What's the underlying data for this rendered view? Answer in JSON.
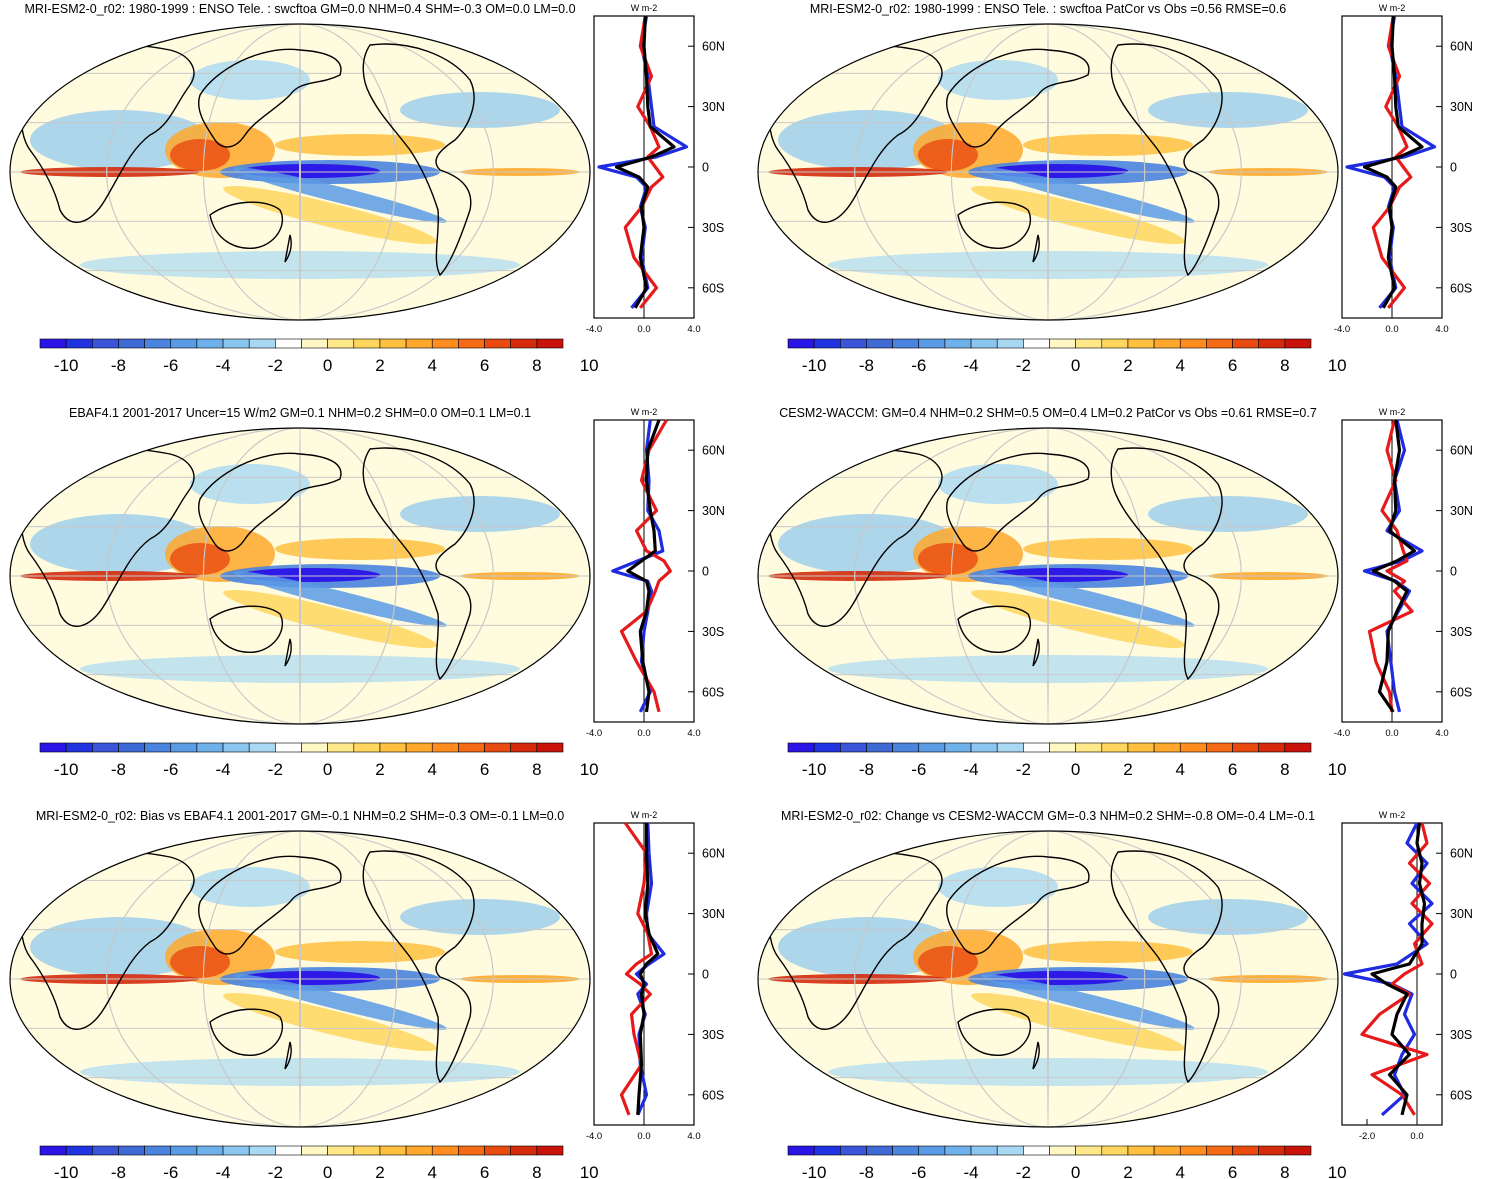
{
  "units_label": "W m-2",
  "colorbar": {
    "labels": [
      "-10",
      "-8",
      "-6",
      "-4",
      "-2",
      "0",
      "2",
      "4",
      "6",
      "8",
      "10"
    ],
    "colors": [
      "#2b14e6",
      "#1f33e0",
      "#3a55d9",
      "#3f6ad6",
      "#4a84de",
      "#5a9be6",
      "#6fb1ea",
      "#8ac6ee",
      "#a9d8f2",
      "#ffffff",
      "#fff7c4",
      "#ffe88a",
      "#ffd65e",
      "#ffc040",
      "#ffa82c",
      "#ff8c1c",
      "#f56a14",
      "#e84a10",
      "#d52a0c",
      "#c8120a"
    ]
  },
  "zonal_colors": {
    "model": "#1e2be0",
    "obs": "#e61a1a",
    "diff": "#000000"
  },
  "chart_data": [
    {
      "type": "map_with_zonal_mean",
      "title": "MRI-ESM2-0_r02: 1980-1999 : ENSO Tele. : swcftoa GM=0.0 NHM=0.4 SHM=-0.3 OM=0.0 LM=0.0",
      "lat_ticks": [
        "60N",
        "30N",
        "0",
        "30S",
        "60S"
      ],
      "x_ticks": [
        "-4.0",
        "0.0",
        "4.0"
      ],
      "xlim": [
        -4,
        4
      ],
      "ylim": [
        -75,
        75
      ],
      "series": [
        {
          "name": "model",
          "lat": [
            75,
            60,
            45,
            30,
            20,
            10,
            5,
            0,
            -5,
            -10,
            -20,
            -30,
            -45,
            -60,
            -70
          ],
          "values": [
            0.2,
            -0.2,
            0.3,
            0.6,
            0.8,
            3.4,
            1.0,
            -3.6,
            -0.6,
            0.2,
            -0.3,
            0.1,
            -0.2,
            0.3,
            -1.0
          ]
        },
        {
          "name": "obs",
          "lat": [
            75,
            60,
            45,
            30,
            20,
            10,
            5,
            0,
            -5,
            -10,
            -20,
            -30,
            -45,
            -60,
            -70
          ],
          "values": [
            0.1,
            -0.3,
            0.6,
            -0.5,
            0.5,
            1.2,
            0.3,
            0.9,
            1.5,
            0.6,
            -0.2,
            -1.5,
            -0.8,
            1.0,
            -0.3
          ]
        },
        {
          "name": "diff",
          "lat": [
            75,
            60,
            45,
            30,
            20,
            10,
            5,
            0,
            -5,
            -10,
            -20,
            -30,
            -45,
            -60,
            -70
          ],
          "values": [
            0.1,
            0.0,
            0.2,
            0.3,
            0.5,
            2.4,
            0.6,
            -2.2,
            -0.4,
            0.3,
            -0.2,
            0.0,
            -0.3,
            0.2,
            -0.7
          ]
        }
      ]
    },
    {
      "type": "map_with_zonal_mean",
      "title": "MRI-ESM2-0_r02: 1980-1999 : ENSO Tele. : swcftoa PatCor vs Obs =0.56 RMSE=0.6",
      "lat_ticks": [
        "60N",
        "30N",
        "0",
        "30S",
        "60S"
      ],
      "x_ticks": [
        "-4.0",
        "0.0",
        "4.0"
      ],
      "xlim": [
        -4,
        4
      ],
      "ylim": [
        -75,
        75
      ],
      "series": [
        {
          "name": "model",
          "lat": [
            75,
            60,
            45,
            30,
            20,
            10,
            5,
            0,
            -5,
            -10,
            -20,
            -30,
            -45,
            -60,
            -70
          ],
          "values": [
            0.2,
            -0.2,
            0.3,
            0.6,
            0.8,
            3.4,
            1.0,
            -3.6,
            -0.6,
            0.2,
            -0.3,
            0.1,
            -0.2,
            0.3,
            -1.0
          ]
        },
        {
          "name": "obs",
          "lat": [
            75,
            60,
            45,
            30,
            20,
            10,
            5,
            0,
            -5,
            -10,
            -20,
            -30,
            -45,
            -60,
            -70
          ],
          "values": [
            0.1,
            -0.3,
            0.6,
            -0.5,
            0.5,
            1.2,
            0.3,
            0.9,
            1.5,
            0.6,
            -0.2,
            -1.5,
            -0.8,
            1.0,
            -0.3
          ]
        },
        {
          "name": "diff",
          "lat": [
            75,
            60,
            45,
            30,
            20,
            10,
            5,
            0,
            -5,
            -10,
            -20,
            -30,
            -45,
            -60,
            -70
          ],
          "values": [
            0.1,
            0.0,
            0.2,
            0.3,
            0.5,
            2.4,
            0.6,
            -2.2,
            -0.4,
            0.3,
            -0.2,
            0.0,
            -0.3,
            0.2,
            -0.7
          ]
        }
      ]
    },
    {
      "type": "map_with_zonal_mean",
      "title": "EBAF4.1 2001-2017 Uncer=15 W/m2 GM=0.1 NHM=0.2 SHM=0.0 OM=0.1 LM=0.1",
      "lat_ticks": [
        "60N",
        "30N",
        "0",
        "30S",
        "60S"
      ],
      "x_ticks": [
        "-4.0",
        "0.0",
        "4.0"
      ],
      "xlim": [
        -4,
        4
      ],
      "ylim": [
        -75,
        75
      ],
      "series": [
        {
          "name": "model",
          "lat": [
            75,
            60,
            45,
            30,
            20,
            10,
            5,
            0,
            -5,
            -10,
            -20,
            -30,
            -45,
            -60,
            -70
          ],
          "values": [
            0.5,
            0.2,
            0.4,
            0.3,
            1.2,
            1.5,
            -0.5,
            -2.5,
            0.3,
            0.6,
            0.3,
            0.0,
            -0.2,
            0.5,
            -0.3
          ]
        },
        {
          "name": "obs",
          "lat": [
            75,
            60,
            45,
            30,
            20,
            10,
            5,
            0,
            -5,
            -10,
            -20,
            -30,
            -45,
            -60,
            -70
          ],
          "values": [
            1.8,
            0.4,
            -0.2,
            1.0,
            -0.6,
            0.2,
            1.6,
            2.1,
            1.2,
            0.9,
            0.2,
            -1.8,
            -0.6,
            0.8,
            1.2
          ]
        },
        {
          "name": "diff",
          "lat": [
            75,
            60,
            45,
            30,
            20,
            10,
            5,
            0,
            -5,
            -10,
            -20,
            -30,
            -45,
            -60,
            -70
          ],
          "values": [
            1.2,
            0.3,
            0.2,
            0.5,
            0.8,
            0.9,
            -0.2,
            -1.3,
            0.2,
            0.4,
            0.2,
            -0.3,
            -0.1,
            0.4,
            0.2
          ]
        }
      ]
    },
    {
      "type": "map_with_zonal_mean",
      "title": "CESM2-WACCM: GM=0.4 NHM=0.2 SHM=0.5 OM=0.4 LM=0.2 PatCor vs Obs =0.61 RMSE=0.7",
      "lat_ticks": [
        "60N",
        "30N",
        "0",
        "30S",
        "60S"
      ],
      "x_ticks": [
        "-4.0",
        "0.0",
        "4.0"
      ],
      "xlim": [
        -4,
        4
      ],
      "ylim": [
        -75,
        75
      ],
      "series": [
        {
          "name": "model",
          "lat": [
            75,
            60,
            45,
            30,
            20,
            10,
            5,
            0,
            -5,
            -10,
            -20,
            -30,
            -45,
            -60,
            -70
          ],
          "values": [
            0.4,
            1.0,
            0.2,
            0.6,
            -0.4,
            2.4,
            0.8,
            -2.2,
            0.3,
            1.4,
            0.5,
            -0.4,
            -0.1,
            0.2,
            0.6
          ]
        },
        {
          "name": "obs",
          "lat": [
            75,
            60,
            45,
            30,
            20,
            10,
            5,
            0,
            -5,
            -10,
            -20,
            -30,
            -45,
            -60,
            -70
          ],
          "values": [
            0.2,
            -0.4,
            0.3,
            -0.8,
            0.4,
            0.9,
            1.2,
            -0.4,
            1.0,
            0.2,
            1.6,
            -1.8,
            -1.3,
            -0.2,
            0.0
          ]
        },
        {
          "name": "diff",
          "lat": [
            75,
            60,
            45,
            30,
            20,
            10,
            5,
            0,
            -5,
            -10,
            -20,
            -30,
            -45,
            -60,
            -70
          ],
          "values": [
            0.3,
            0.6,
            0.2,
            0.3,
            -0.2,
            1.8,
            0.4,
            -1.5,
            0.2,
            1.2,
            0.4,
            -0.3,
            -0.4,
            -1.0,
            0.1
          ]
        }
      ]
    },
    {
      "type": "map_with_zonal_mean",
      "title": "MRI-ESM2-0_r02: Bias vs EBAF4.1 2001-2017 GM=-0.1 NHM=0.2 SHM=-0.3 OM=-0.1 LM=0.0",
      "lat_ticks": [
        "60N",
        "30N",
        "0",
        "30S",
        "60S"
      ],
      "x_ticks": [
        "-4.0",
        "0.0",
        "4.0"
      ],
      "xlim": [
        -4,
        4
      ],
      "ylim": [
        -75,
        75
      ],
      "series": [
        {
          "name": "model",
          "lat": [
            75,
            60,
            45,
            30,
            20,
            10,
            5,
            0,
            -5,
            -10,
            -20,
            -30,
            -45,
            -60,
            -70
          ],
          "values": [
            0.3,
            0.4,
            0.6,
            0.2,
            0.3,
            1.6,
            0.4,
            -0.6,
            0.2,
            -0.5,
            0.1,
            -0.4,
            -0.3,
            0.2,
            -0.5
          ]
        },
        {
          "name": "obs",
          "lat": [
            75,
            60,
            45,
            30,
            20,
            10,
            5,
            0,
            -5,
            -10,
            -20,
            -30,
            -45,
            -60,
            -70
          ],
          "values": [
            -1.5,
            0.2,
            0.0,
            -0.5,
            0.3,
            0.6,
            -0.6,
            -1.4,
            -0.3,
            0.5,
            -1.0,
            -0.8,
            -0.2,
            -1.8,
            -1.2
          ]
        },
        {
          "name": "diff",
          "lat": [
            75,
            60,
            45,
            30,
            20,
            10,
            5,
            0,
            -5,
            -10,
            -20,
            -30,
            -45,
            -60,
            -70
          ],
          "values": [
            0.2,
            0.2,
            0.3,
            0.1,
            0.4,
            1.1,
            0.2,
            -0.3,
            0.0,
            -0.2,
            0.0,
            -0.3,
            -0.2,
            -0.4,
            -0.5
          ]
        }
      ]
    },
    {
      "type": "map_with_zonal_mean",
      "title": "MRI-ESM2-0_r02: Change vs CESM2-WACCM GM=-0.3 NHM=0.2 SHM=-0.8 OM=-0.4 LM=-0.1",
      "lat_ticks": [
        "60N",
        "30N",
        "0",
        "30S",
        "60S"
      ],
      "x_ticks": [
        "-2.0",
        "0.0"
      ],
      "xlim": [
        -3,
        1
      ],
      "ylim": [
        -75,
        75
      ],
      "series": [
        {
          "name": "model",
          "lat": [
            75,
            65,
            55,
            45,
            35,
            25,
            15,
            5,
            0,
            -5,
            -10,
            -20,
            -30,
            -40,
            -50,
            -60,
            -70
          ],
          "values": [
            0.0,
            -0.4,
            0.4,
            -0.2,
            0.6,
            -0.3,
            0.4,
            -0.8,
            -2.9,
            -1.0,
            -0.2,
            -0.5,
            -0.1,
            -0.6,
            -0.9,
            -0.5,
            -1.4
          ]
        },
        {
          "name": "obs",
          "lat": [
            75,
            65,
            55,
            45,
            35,
            25,
            15,
            5,
            0,
            -5,
            -10,
            -20,
            -30,
            -40,
            -50,
            -60,
            -70
          ],
          "values": [
            0.2,
            0.4,
            -0.3,
            0.5,
            -0.2,
            0.6,
            -0.1,
            0.2,
            -0.5,
            -1.0,
            -0.3,
            -1.5,
            -2.2,
            0.4,
            -1.8,
            -0.6,
            -0.1
          ]
        },
        {
          "name": "diff",
          "lat": [
            75,
            65,
            55,
            45,
            35,
            25,
            15,
            5,
            0,
            -5,
            -10,
            -20,
            -30,
            -40,
            -50,
            -60,
            -70
          ],
          "values": [
            0.1,
            0.0,
            0.2,
            0.1,
            0.3,
            0.2,
            0.2,
            -0.3,
            -1.8,
            -1.2,
            -0.4,
            -0.8,
            -1.0,
            -0.3,
            -1.1,
            -0.4,
            -0.6
          ]
        }
      ]
    }
  ]
}
